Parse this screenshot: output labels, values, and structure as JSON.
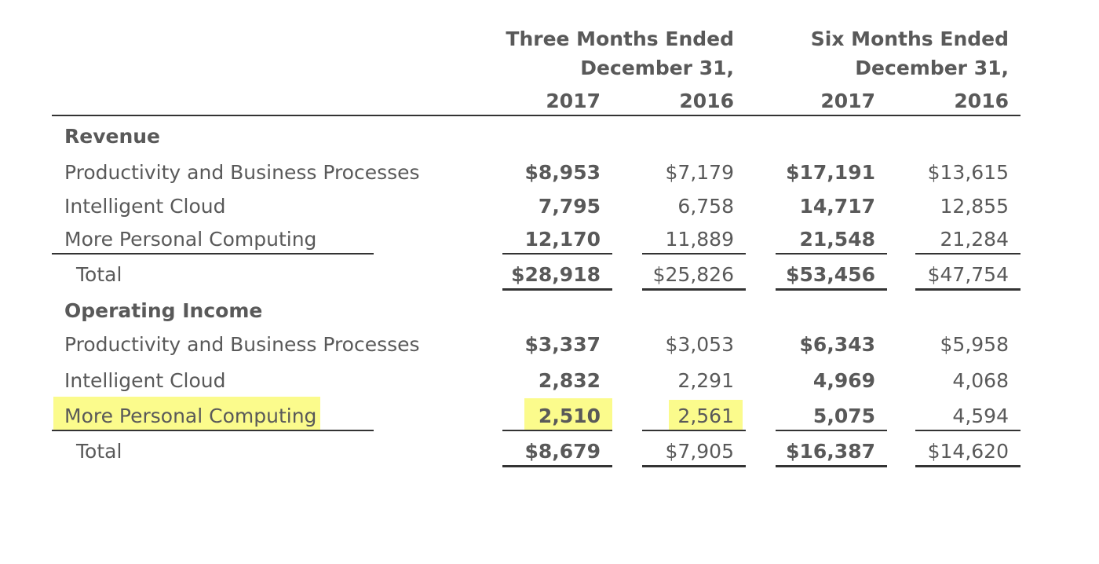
{
  "header": {
    "three_months_line1": "Three Months Ended",
    "three_months_line2": "December 31,",
    "six_months_line1": "Six Months Ended",
    "six_months_line2": "December 31,",
    "years": [
      "2017",
      "2016",
      "2017",
      "2016"
    ]
  },
  "revenue": {
    "title": "Revenue",
    "rows": [
      {
        "label": "Productivity and Business Processes",
        "values": [
          "$8,953",
          "$7,179",
          "$17,191",
          "$13,615"
        ]
      },
      {
        "label": "Intelligent Cloud",
        "values": [
          "7,795",
          "6,758",
          "14,717",
          "12,855"
        ]
      },
      {
        "label": "More Personal Computing",
        "values": [
          "12,170",
          "11,889",
          "21,548",
          "21,284"
        ]
      }
    ],
    "total": {
      "label": "Total",
      "values": [
        "$28,918",
        "$25,826",
        "$53,456",
        "$47,754"
      ]
    }
  },
  "operating_income": {
    "title": "Operating Income",
    "rows": [
      {
        "label": "Productivity and Business Processes",
        "values": [
          "$3,337",
          "$3,053",
          "$6,343",
          "$5,958"
        ]
      },
      {
        "label": "Intelligent Cloud",
        "values": [
          "2,832",
          "2,291",
          "4,969",
          "4,068"
        ]
      },
      {
        "label": "More Personal Computing",
        "values": [
          "2,510",
          "2,561",
          "5,075",
          "4,594"
        ]
      }
    ],
    "total": {
      "label": "Total",
      "values": [
        "$8,679",
        "$7,905",
        "$16,387",
        "$14,620"
      ]
    }
  },
  "colors": {
    "text": "#595959",
    "highlight": "#fbfb8c",
    "rule": "#333333"
  }
}
